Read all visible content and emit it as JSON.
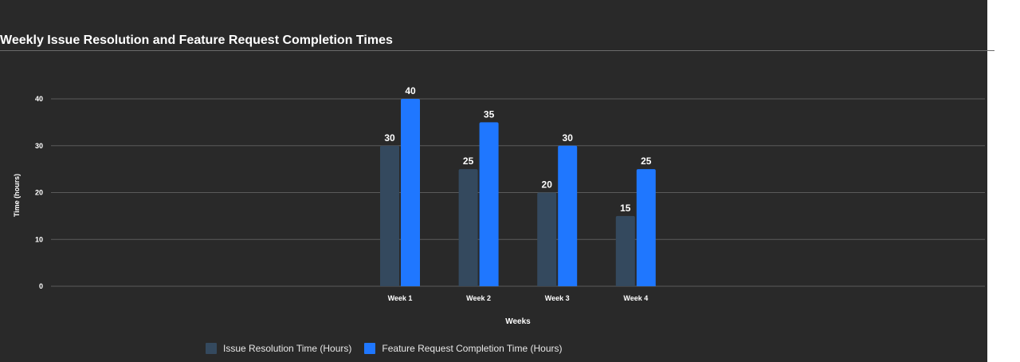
{
  "chart_data": {
    "type": "bar",
    "title": "Weekly Issue Resolution and Feature Request Completion Times",
    "xlabel": "Weeks",
    "ylabel": "Time (hours)",
    "categories": [
      "Week 1",
      "Week 2",
      "Week 3",
      "Week 4"
    ],
    "series": [
      {
        "name": "Issue Resolution Time (Hours)",
        "color": "#34495e",
        "values": [
          30,
          25,
          20,
          15
        ]
      },
      {
        "name": "Feature Request Completion Time (Hours)",
        "color": "#1f77ff",
        "values": [
          40,
          35,
          30,
          25
        ]
      }
    ],
    "ylim": [
      0,
      40
    ],
    "yticks": [
      "0",
      "10",
      "20",
      "30",
      "40"
    ],
    "grid": true,
    "data_labels": true,
    "legend_position": "bottom-center",
    "colors": {
      "background": "#292929",
      "grid": "#5a5a5a",
      "text": "#ffffff"
    }
  }
}
